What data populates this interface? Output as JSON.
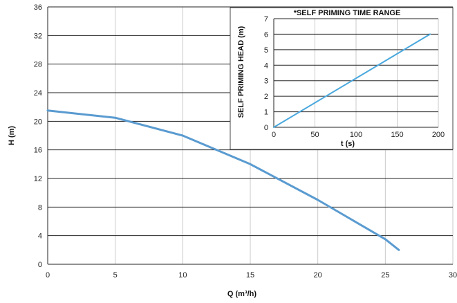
{
  "chart_data": [
    {
      "type": "line",
      "title": "",
      "xlabel": "Q (m³/h)",
      "ylabel": "H (m)",
      "xlim": [
        0,
        30
      ],
      "ylim": [
        0,
        36
      ],
      "xticks": [
        "0",
        "5",
        "10",
        "15",
        "20",
        "25",
        "30"
      ],
      "yticks": [
        "0",
        "4",
        "8",
        "12",
        "16",
        "20",
        "24",
        "28",
        "32",
        "36"
      ],
      "grid": true,
      "color": "#5a9bd0",
      "series": [
        {
          "x": [
            0,
            5,
            10,
            15,
            20,
            25,
            26
          ],
          "y": [
            21.5,
            20.5,
            18,
            14,
            9,
            3.5,
            2
          ]
        }
      ]
    },
    {
      "type": "line",
      "title": "*SELF PRIMING TIME RANGE",
      "xlabel": "t (s)",
      "ylabel": "SELF PRIMING HEAD (m)",
      "xlim": [
        0,
        200
      ],
      "ylim": [
        0,
        7
      ],
      "xticks": [
        "0",
        "50",
        "100",
        "150",
        "200"
      ],
      "yticks": [
        "0",
        "1",
        "2",
        "3",
        "4",
        "5",
        "6",
        "7"
      ],
      "grid": true,
      "color": "#4aa8dd",
      "series": [
        {
          "x": [
            0,
            190
          ],
          "y": [
            0,
            6
          ]
        }
      ]
    }
  ]
}
